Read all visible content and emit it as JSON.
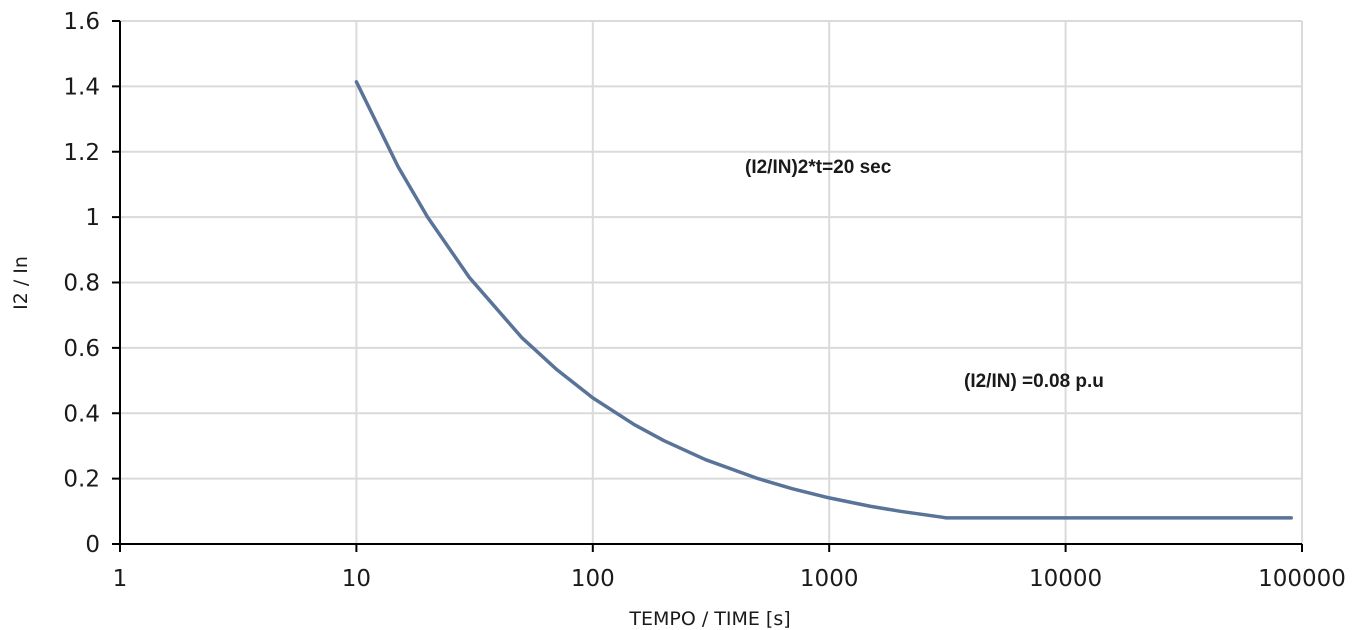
{
  "chart_data": {
    "type": "line",
    "title": "",
    "xlabel": "TEMPO / TIME [s]",
    "ylabel": "I2 / In",
    "xscale": "log",
    "xlim": [
      1,
      100000
    ],
    "ylim": [
      0,
      1.6
    ],
    "grid": true,
    "x_tick_labels": [
      "1",
      "10",
      "100",
      "1000",
      "10000",
      "100000"
    ],
    "y_tick_labels": [
      "0",
      "0.2",
      "0.4",
      "0.6",
      "0.8",
      "1",
      "1.2",
      "1.4",
      "1.6"
    ],
    "annotations": [
      "(I2/IN)2*t=20 sec",
      "(I2/IN) =0.08 p.u"
    ],
    "colors": {
      "line": "#5a7398",
      "grid": "#dadada",
      "axis": "#000000"
    },
    "series": [
      {
        "x": [
          10,
          15,
          20,
          30,
          50,
          70,
          100,
          150,
          200,
          300,
          500,
          700,
          1000,
          1500,
          2000,
          3000,
          3125,
          5000,
          10000,
          20000,
          50000,
          90000
        ],
        "y": [
          1.414,
          1.155,
          1.0,
          0.816,
          0.632,
          0.535,
          0.447,
          0.365,
          0.316,
          0.258,
          0.2,
          0.169,
          0.141,
          0.115,
          0.1,
          0.082,
          0.08,
          0.08,
          0.08,
          0.08,
          0.08,
          0.08
        ]
      }
    ]
  }
}
